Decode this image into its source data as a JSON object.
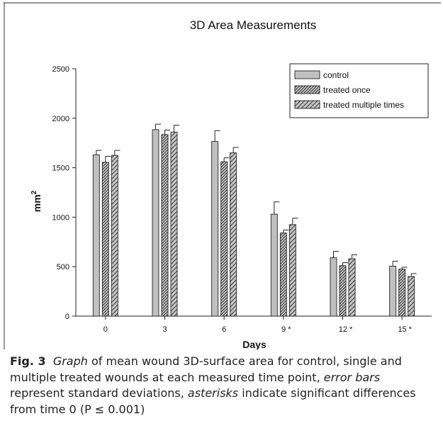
{
  "chart_data": {
    "type": "bar",
    "title": "3D Area Measurements",
    "xlabel": "Days",
    "ylabel_base": "mm",
    "ylabel_sup": "2",
    "categories": [
      "0",
      "3",
      "6",
      "9 *",
      "12 *",
      "15 *"
    ],
    "ylim": [
      0,
      2500
    ],
    "yticks": [
      0,
      500,
      1000,
      1500,
      2000,
      2500
    ],
    "legend_position": "top-right",
    "grid": false,
    "error_bars": "upper",
    "series": [
      {
        "name": "control",
        "pattern": "solid",
        "fill": "#bdbdbd",
        "values": [
          1630,
          1885,
          1765,
          1030,
          590,
          505
        ],
        "errors": [
          45,
          55,
          110,
          125,
          65,
          50
        ]
      },
      {
        "name": "treated once",
        "pattern": "dense-hatch",
        "fill": "#bdbdbd",
        "values": [
          1555,
          1835,
          1560,
          840,
          510,
          475
        ],
        "errors": [
          60,
          45,
          40,
          30,
          30,
          20
        ]
      },
      {
        "name": "treated multiple times",
        "pattern": "sparse-hatch",
        "fill": "#bdbdbd",
        "values": [
          1625,
          1860,
          1650,
          925,
          580,
          400
        ],
        "errors": [
          50,
          70,
          55,
          65,
          40,
          30
        ]
      }
    ]
  },
  "caption": {
    "label": "Fig. 3",
    "word_graph": "Graph",
    "text_1": " of mean wound 3D-surface area for control, single and multiple treated wounds at each measured time point, ",
    "word_error_bars": "error bars",
    "text_2": " represent standard deviations, ",
    "word_asterisks": "asterisks",
    "text_3": " indicate significant differences from time 0 (P ≤ 0.001)"
  }
}
